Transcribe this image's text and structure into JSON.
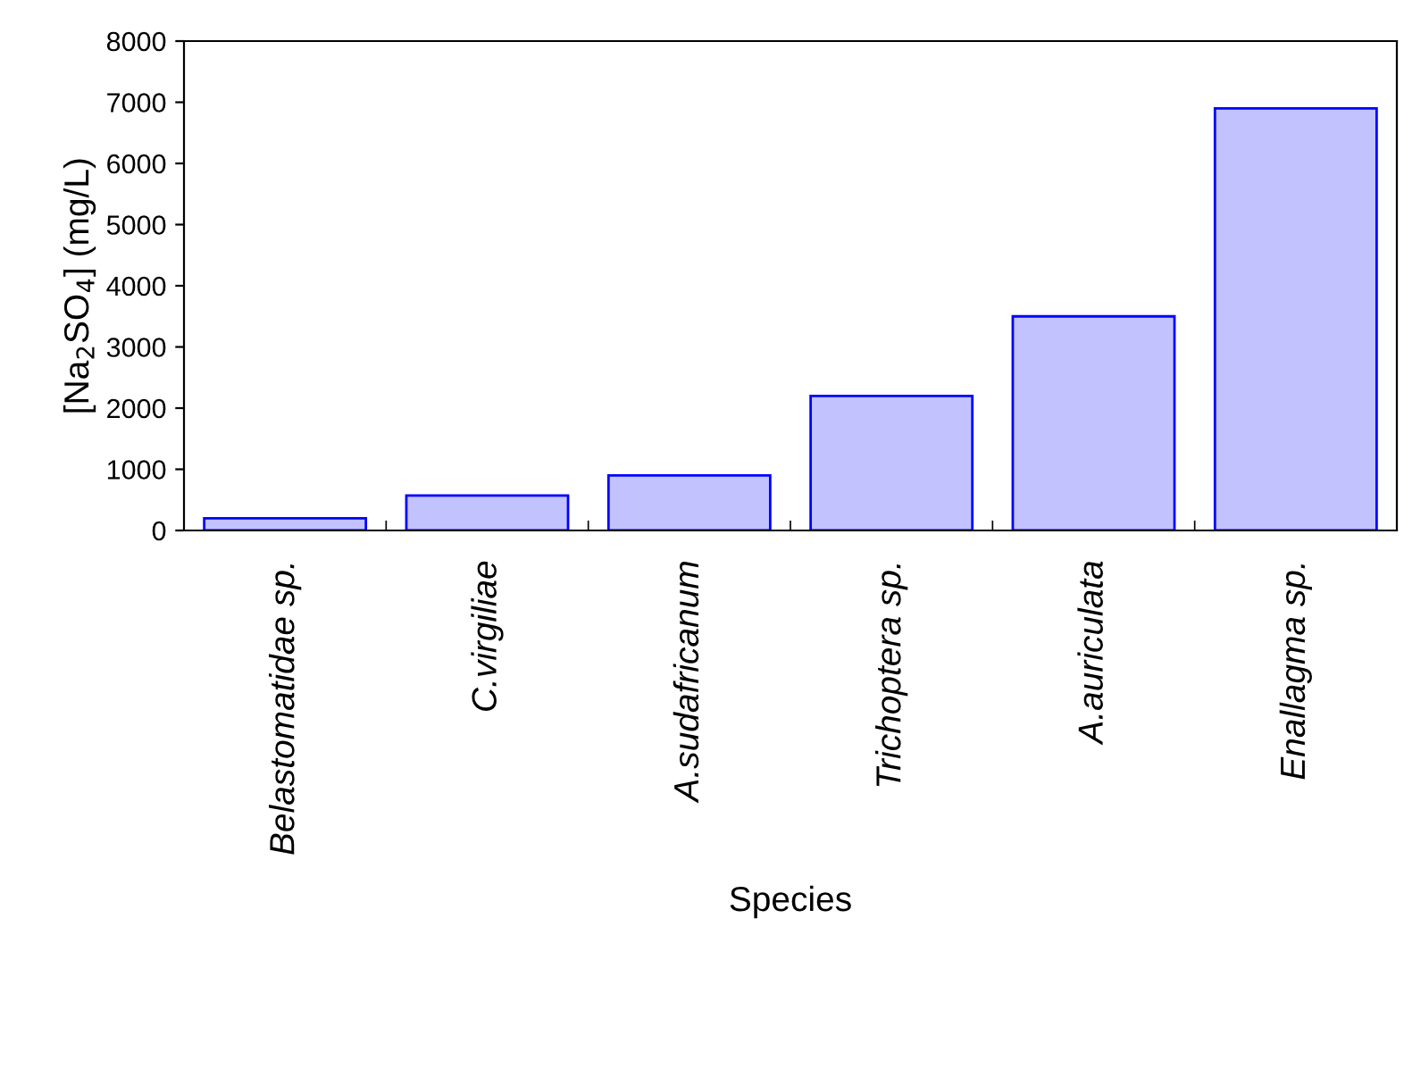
{
  "chart_data": {
    "type": "bar",
    "categories": [
      "Belastomatidae sp.",
      "C.virgiliae",
      "A.sudafricanum",
      "Trichoptera sp.",
      "A.auriculata",
      "Enallagma sp."
    ],
    "values": [
      200,
      570,
      900,
      2200,
      3500,
      6900
    ],
    "color": "#0000ff",
    "xlabel": "Species",
    "ylabel": "[Na$_{2}$SO$_{4}$] (mg/L)",
    "ylim": [
      0,
      8000
    ],
    "yticks": [
      0,
      1000,
      2000,
      3000,
      4000,
      5000,
      6000,
      7000,
      8000
    ],
    "grid": false,
    "legend": false
  }
}
